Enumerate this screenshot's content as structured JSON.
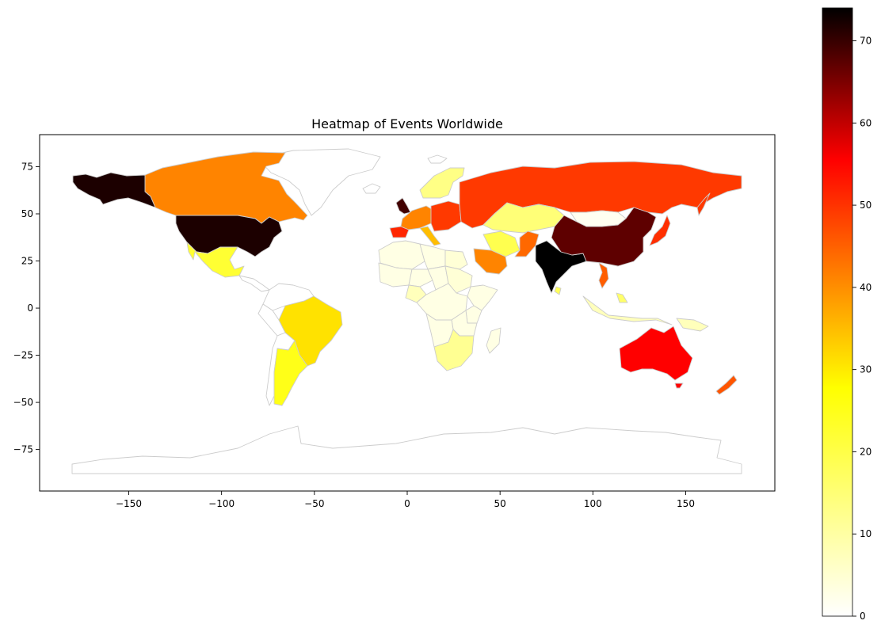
{
  "chart_data": {
    "type": "choropleth",
    "title": "Heatmap of Events Worldwide",
    "xlabel": "",
    "ylabel": "",
    "xlim": [
      -198,
      198
    ],
    "ylim": [
      -97,
      92
    ],
    "xticks": [
      -150,
      -100,
      -50,
      0,
      50,
      100,
      150
    ],
    "yticks": [
      -75,
      -50,
      -25,
      0,
      25,
      50,
      75
    ],
    "xtick_labels": [
      "−150",
      "−100",
      "−50",
      "0",
      "50",
      "100",
      "150"
    ],
    "ytick_labels": [
      "−75",
      "−50",
      "−25",
      "0",
      "25",
      "50",
      "75"
    ],
    "grid": false,
    "colormap": "hot_r",
    "colorbar": {
      "min": 0,
      "max": 74,
      "ticks": [
        0,
        10,
        20,
        30,
        40,
        50,
        60,
        70
      ],
      "tick_labels": [
        "0",
        "10",
        "20",
        "30",
        "40",
        "50",
        "60",
        "70"
      ]
    },
    "colors": {
      "border": "#cccccc",
      "axis": "#000000"
    },
    "regions": [
      {
        "name": "United States",
        "value": 71
      },
      {
        "name": "India",
        "value": 74
      },
      {
        "name": "China",
        "value": 64
      },
      {
        "name": "United Kingdom",
        "value": 67
      },
      {
        "name": "Australia",
        "value": 47
      },
      {
        "name": "Russia",
        "value": 41
      },
      {
        "name": "Japan",
        "value": 42
      },
      {
        "name": "Spain",
        "value": 43
      },
      {
        "name": "New Zealand",
        "value": 38
      },
      {
        "name": "Canada",
        "value": 33
      },
      {
        "name": "Saudi Arabia",
        "value": 33
      },
      {
        "name": "Germany",
        "value": 33
      },
      {
        "name": "Pakistan",
        "value": 36
      },
      {
        "name": "Vietnam",
        "value": 37
      },
      {
        "name": "Italy",
        "value": 27
      },
      {
        "name": "Brazil",
        "value": 23
      },
      {
        "name": "Argentina",
        "value": 17
      },
      {
        "name": "Mexico",
        "value": 15
      },
      {
        "name": "Iran",
        "value": 13
      },
      {
        "name": "Kazakhstan",
        "value": 10
      },
      {
        "name": "Sweden",
        "value": 9
      },
      {
        "name": "South Africa",
        "value": 8
      },
      {
        "name": "Sri Lanka",
        "value": 12
      },
      {
        "name": "Philippines",
        "value": 11
      },
      {
        "name": "Indonesia",
        "value": 5
      },
      {
        "name": "Algeria",
        "value": 2
      },
      {
        "name": "Libya",
        "value": 2
      },
      {
        "name": "Egypt",
        "value": 3
      },
      {
        "name": "Sudan",
        "value": 3
      },
      {
        "name": "Chad",
        "value": 2
      },
      {
        "name": "Niger",
        "value": 2
      },
      {
        "name": "Mali",
        "value": 2
      },
      {
        "name": "Nigeria",
        "value": 5
      },
      {
        "name": "DR Congo",
        "value": 2
      },
      {
        "name": "Angola",
        "value": 2
      },
      {
        "name": "Ethiopia",
        "value": 2
      },
      {
        "name": "Kenya",
        "value": 2
      },
      {
        "name": "Tanzania",
        "value": 2
      },
      {
        "name": "Madagascar",
        "value": 2
      },
      {
        "name": "Mongolia",
        "value": 1
      },
      {
        "name": "Colombia",
        "value": 0
      },
      {
        "name": "Peru",
        "value": 0
      },
      {
        "name": "Bolivia",
        "value": 0
      },
      {
        "name": "Greenland",
        "value": 0
      },
      {
        "name": "Antarctica",
        "value": 0
      }
    ]
  }
}
